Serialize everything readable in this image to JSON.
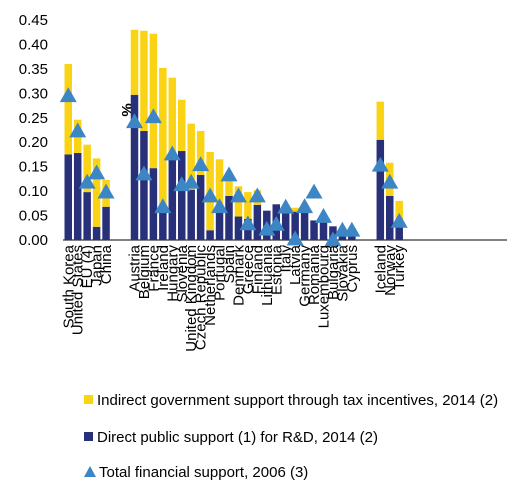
{
  "chart_data": {
    "type": "bar",
    "stacked": true,
    "title": "",
    "xlabel": "",
    "ylabel": "%",
    "ylim": [
      0,
      0.45
    ],
    "y_ticks": [
      "0.00",
      "0.05",
      "0.10",
      "0.15",
      "0.20",
      "0.25",
      "0.30",
      "0.35",
      "0.40",
      "0.45"
    ],
    "grid": false,
    "legend_position": "bottom",
    "groups": [
      [
        "South Korea",
        "United States",
        "EU (4)",
        "Japan",
        "China"
      ],
      [
        "Austria",
        "Belgium",
        "France",
        "Ireland",
        "Hungary",
        "Slovenia",
        "United Kingdom",
        "Czech Republic",
        "Netherlands",
        "Portugal",
        "Spain",
        "Denmark",
        "Greece",
        "Finland",
        "Lithuania",
        "Estonia",
        "Italy",
        "Latvia",
        "Germany",
        "Romania",
        "Luxembourg",
        "Bulgaria",
        "Slovakia",
        "Cyprus"
      ],
      [
        "Iceland",
        "Norway",
        "Turkey"
      ]
    ],
    "categories": [
      "South Korea",
      "United States",
      "EU (4)",
      "Japan",
      "China",
      "Austria",
      "Belgium",
      "France",
      "Ireland",
      "Hungary",
      "Slovenia",
      "United Kingdom",
      "Czech Republic",
      "Netherlands",
      "Portugal",
      "Spain",
      "Denmark",
      "Greece",
      "Finland",
      "Lithuania",
      "Estonia",
      "Italy",
      "Latvia",
      "Germany",
      "Romania",
      "Luxembourg",
      "Bulgaria",
      "Slovakia",
      "Cyprus",
      "Iceland",
      "Norway",
      "Turkey"
    ],
    "series": [
      {
        "name": "Direct public support (1) for R&D, 2014 (2)",
        "kind": "bar",
        "color": "#28307a",
        "values": [
          0.175,
          0.178,
          0.098,
          0.027,
          0.068,
          0.297,
          0.223,
          0.147,
          0.062,
          0.172,
          0.182,
          0.103,
          0.133,
          0.02,
          0.065,
          0.09,
          0.048,
          0.043,
          0.072,
          0.06,
          0.073,
          0.067,
          0.058,
          0.06,
          0.04,
          0.04,
          0.028,
          0.015,
          0.012,
          0.205,
          0.09,
          0.03
        ]
      },
      {
        "name": "Indirect government support through tax incentives, 2014 (2)",
        "kind": "bar",
        "color": "#fad414",
        "values": [
          0.185,
          0.068,
          0.097,
          0.14,
          0.055,
          0.133,
          0.205,
          0.275,
          0.29,
          0.16,
          0.105,
          0.135,
          0.09,
          0.16,
          0.1,
          0.03,
          0.062,
          0.055,
          0.03,
          0.0,
          0.0,
          0.0,
          0.008,
          0.0,
          0.0,
          0.008,
          0.0,
          0.0,
          0.0,
          0.078,
          0.068,
          0.05
        ]
      },
      {
        "name": "Total financial support, 2006 (3)",
        "kind": "marker",
        "color": "#3d86c6",
        "values": [
          0.295,
          0.223,
          0.118,
          0.137,
          0.098,
          0.242,
          0.135,
          0.252,
          0.068,
          0.176,
          0.113,
          0.118,
          0.154,
          0.09,
          0.068,
          0.133,
          0.09,
          0.033,
          0.09,
          0.022,
          0.032,
          0.067,
          0.002,
          0.068,
          0.098,
          0.048,
          0.0,
          0.02,
          0.02,
          0.153,
          0.118,
          0.038
        ]
      }
    ]
  }
}
